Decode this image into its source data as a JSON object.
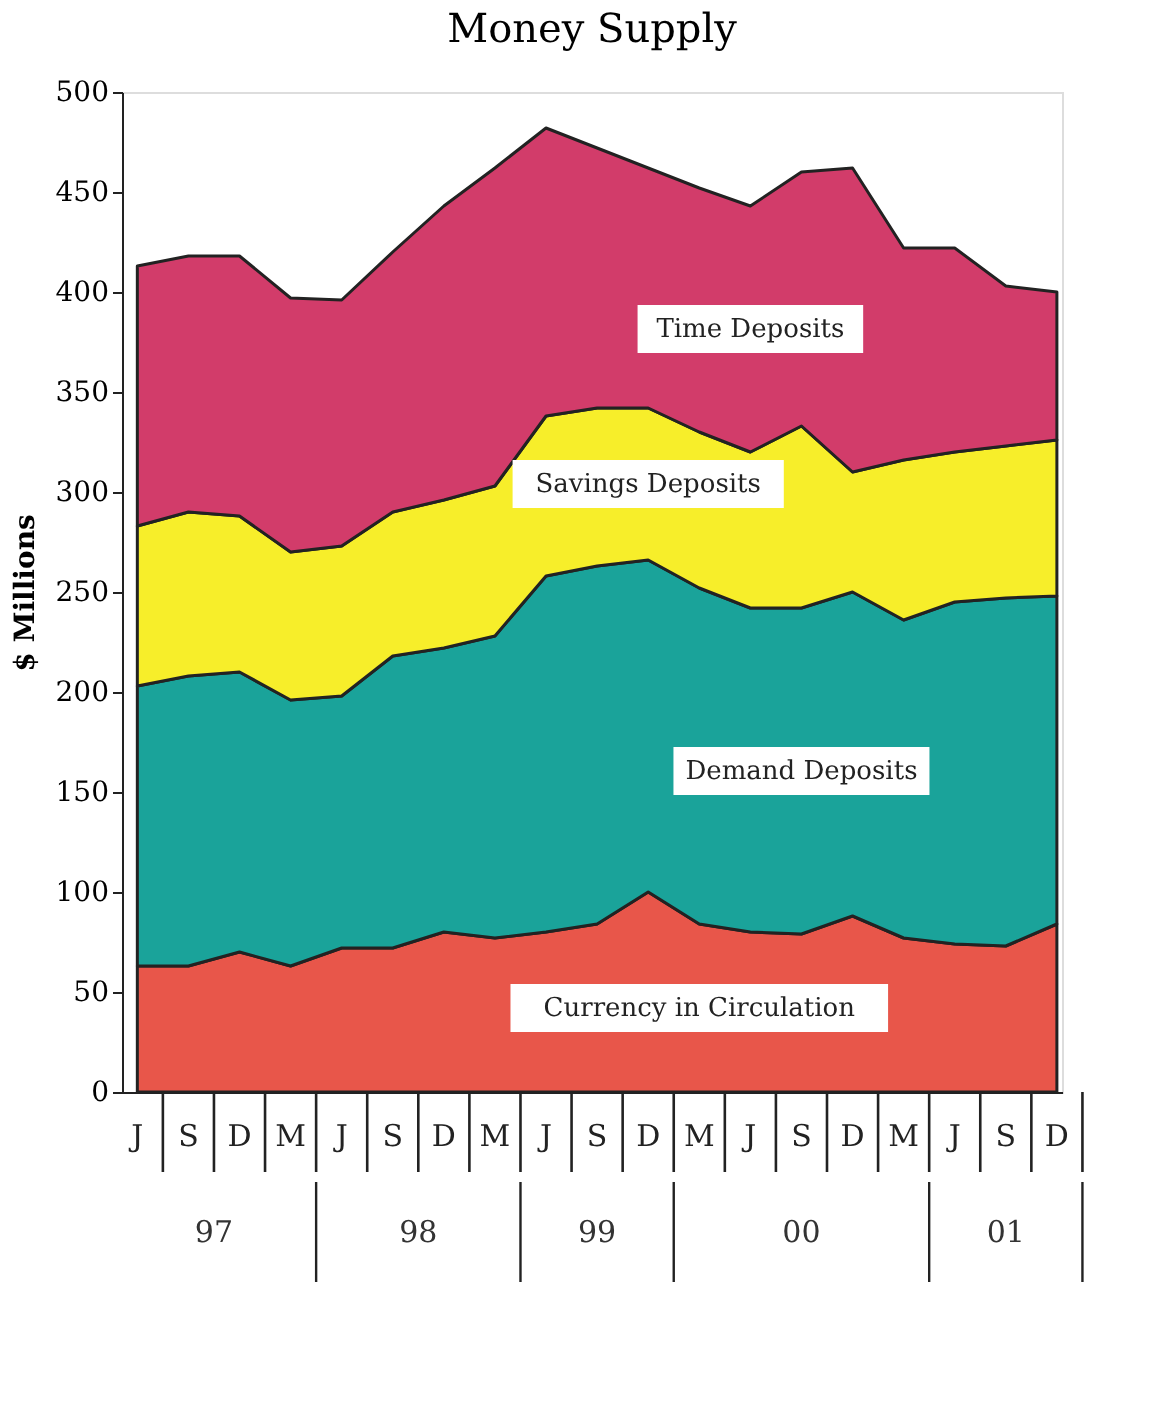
{
  "chart_data": {
    "type": "area",
    "title": "Money Supply",
    "ylabel": "$ Millions",
    "categories": [
      "J",
      "S",
      "D",
      "M",
      "J",
      "S",
      "D",
      "M",
      "J",
      "S",
      "D",
      "M",
      "J",
      "S",
      "D",
      "M",
      "J",
      "S",
      "D"
    ],
    "stacked": true,
    "ylim": [
      0,
      500
    ],
    "yticks": [
      0,
      50,
      100,
      150,
      200,
      250,
      300,
      350,
      400,
      450,
      500
    ],
    "grid": false,
    "legend": false,
    "annotations": [
      "97",
      "98",
      "99",
      "00",
      "01"
    ],
    "series": [
      {
        "name": "Currency in Circulation",
        "color": "#e8564a",
        "values": [
          63,
          63,
          70,
          63,
          72,
          72,
          80,
          77,
          80,
          84,
          100,
          84,
          80,
          79,
          88,
          77,
          74,
          73,
          84
        ]
      },
      {
        "name": "Demand Deposits",
        "color": "#1aa39a",
        "values": [
          140,
          145,
          140,
          133,
          126,
          146,
          142,
          151,
          178,
          179,
          166,
          168,
          162,
          163,
          162,
          159,
          171,
          174,
          164
        ]
      },
      {
        "name": "Savings Deposits",
        "color": "#f7ee2a",
        "values": [
          80,
          82,
          78,
          74,
          75,
          72,
          74,
          75,
          80,
          79,
          76,
          78,
          78,
          91,
          60,
          80,
          75,
          76,
          78
        ]
      },
      {
        "name": "Time Deposits",
        "color": "#d23c6a",
        "values": [
          130,
          128,
          130,
          127,
          123,
          130,
          147,
          159,
          144,
          130,
          120,
          122,
          123,
          127,
          152,
          106,
          102,
          80,
          74
        ]
      }
    ]
  }
}
